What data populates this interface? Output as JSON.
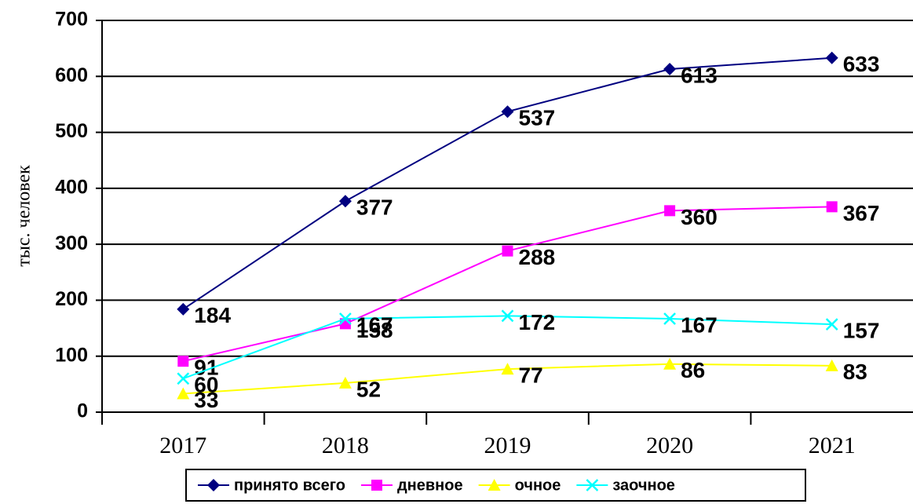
{
  "chart_data": {
    "type": "line",
    "y_label": "тыс. человек",
    "categories": [
      "2017",
      "2018",
      "2019",
      "2020",
      "2021"
    ],
    "series": [
      {
        "name": "принято всего",
        "color": "#000080",
        "marker": "diamond",
        "values": [
          184,
          377,
          537,
          613,
          633
        ]
      },
      {
        "name": "дневное",
        "color": "#ff00ff",
        "marker": "square",
        "values": [
          91,
          158,
          288,
          360,
          367
        ]
      },
      {
        "name": "очное",
        "color": "#ffff00",
        "marker": "triangle",
        "values": [
          33,
          52,
          77,
          86,
          83
        ]
      },
      {
        "name": "заочное",
        "color": "#00ffff",
        "marker": "x",
        "values": [
          60,
          167,
          172,
          167,
          157
        ]
      }
    ],
    "ylim": [
      0,
      700
    ],
    "yticks": [
      0,
      100,
      200,
      300,
      400,
      500,
      600,
      700
    ],
    "grid": true,
    "legend": "bottom"
  }
}
